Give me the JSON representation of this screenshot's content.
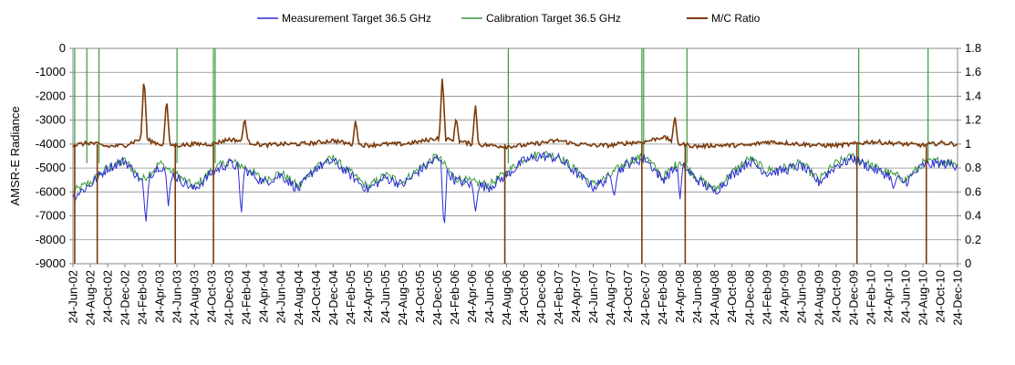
{
  "chart_data": {
    "type": "line",
    "title": "",
    "xlabel": "",
    "ylabel": "AMSR-E Radiance",
    "y2label": "",
    "ylim": [
      -9000,
      0
    ],
    "y2lim": [
      0,
      1.8
    ],
    "yticks": [
      "0",
      "-1000",
      "-2000",
      "-3000",
      "-4000",
      "-5000",
      "-6000",
      "-7000",
      "-8000",
      "-9000"
    ],
    "y2ticks": [
      "1.8",
      "1.6",
      "1.4",
      "1.2",
      "1",
      "0.8",
      "0.6",
      "0.4",
      "0.2",
      "0"
    ],
    "grid": true,
    "legend_position": "top",
    "x_categories": [
      "24-Jun-02",
      "24-Aug-02",
      "24-Oct-02",
      "24-Dec-02",
      "24-Feb-03",
      "24-Apr-03",
      "24-Jun-03",
      "24-Aug-03",
      "24-Oct-03",
      "24-Dec-03",
      "24-Feb-04",
      "24-Apr-04",
      "24-Jun-04",
      "24-Aug-04",
      "24-Oct-04",
      "24-Dec-04",
      "24-Feb-05",
      "24-Apr-05",
      "24-Jun-05",
      "24-Aug-05",
      "24-Oct-05",
      "24-Dec-05",
      "24-Feb-06",
      "24-Apr-06",
      "24-Jun-06",
      "24-Aug-06",
      "24-Oct-06",
      "24-Dec-06",
      "24-Feb-07",
      "24-Apr-07",
      "24-Jun-07",
      "24-Aug-07",
      "24-Oct-07",
      "24-Dec-07",
      "24-Feb-08",
      "24-Apr-08",
      "24-Jun-08",
      "24-Aug-08",
      "24-Oct-08",
      "24-Dec-08",
      "24-Feb-09",
      "24-Apr-09",
      "24-Jun-09",
      "24-Aug-09",
      "24-Oct-09",
      "24-Dec-09",
      "24-Feb-10",
      "24-Apr-10",
      "24-Jun-10",
      "24-Aug-10",
      "24-Oct-10",
      "24-Dec-10"
    ],
    "series": [
      {
        "name": "Measurement Target 36.5 GHz",
        "axis": "left",
        "color": "#2b2bd6",
        "values": [
          -6200,
          -5700,
          -5000,
          -4700,
          -5600,
          -4900,
          -5400,
          -5900,
          -5200,
          -4800,
          -5100,
          -5600,
          -5300,
          -5900,
          -5000,
          -4700,
          -5300,
          -5900,
          -5400,
          -5700,
          -5100,
          -4600,
          -5500,
          -5700,
          -5800,
          -5300,
          -4700,
          -4500,
          -4600,
          -5200,
          -5800,
          -5400,
          -4800,
          -4600,
          -5500,
          -4800,
          -5500,
          -6000,
          -5300,
          -4700,
          -5200,
          -5100,
          -4900,
          -5600,
          -4900,
          -4600,
          -5000,
          -5300,
          -5600,
          -4900,
          -4800,
          -4900
        ],
        "spikes": [
          [
            4.2,
            -7400
          ],
          [
            5.5,
            -6600
          ],
          [
            9.7,
            -7000
          ],
          [
            21.4,
            -7700
          ],
          [
            23.2,
            -6900
          ],
          [
            31.2,
            -6200
          ],
          [
            35.0,
            -6300
          ],
          [
            47.3,
            -5900
          ]
        ]
      },
      {
        "name": "Calibration Target 36.5 GHz",
        "axis": "left",
        "color": "#3a9a3a",
        "values": [
          -6000,
          -5600,
          -5000,
          -4700,
          -5500,
          -4800,
          -5300,
          -5800,
          -5100,
          -4700,
          -5000,
          -5500,
          -5200,
          -5800,
          -4900,
          -4600,
          -5200,
          -5800,
          -5300,
          -5600,
          -5000,
          -4500,
          -5400,
          -5600,
          -5700,
          -5200,
          -4600,
          -4400,
          -4500,
          -5100,
          -5700,
          -5300,
          -4700,
          -4500,
          -5400,
          -4700,
          -5400,
          -5900,
          -5200,
          -4600,
          -5100,
          -5000,
          -4800,
          -5500,
          -4800,
          -4500,
          -4900,
          -5200,
          -5500,
          -4800,
          -4700,
          -4800
        ],
        "spikes_to_top": [
          0.1,
          0.8,
          1.5,
          6.0,
          8.1,
          8.2,
          25.1,
          32.8,
          32.9,
          35.4,
          45.3,
          49.3
        ]
      },
      {
        "name": "M/C Ratio",
        "axis": "right",
        "color": "#7a3a0a",
        "values": [
          0.99,
          1.01,
          0.98,
          0.99,
          1.05,
          1.0,
          0.99,
          1.0,
          1.0,
          1.04,
          1.02,
          0.99,
          1.0,
          1.0,
          1.01,
          1.03,
          1.0,
          0.99,
          1.0,
          1.0,
          1.02,
          1.05,
          1.03,
          1.0,
          0.99,
          0.98,
          0.99,
          1.01,
          1.03,
          1.0,
          0.99,
          0.99,
          1.01,
          1.02,
          1.06,
          1.0,
          0.98,
          0.99,
          0.99,
          0.99,
          1.02,
          1.01,
          1.0,
          0.99,
          0.99,
          1.0,
          1.02,
          1.01,
          1.0,
          0.99,
          1.01,
          1.0
        ],
        "spikes": [
          [
            4.1,
            1.59
          ],
          [
            5.4,
            1.4
          ],
          [
            9.9,
            1.23
          ],
          [
            16.3,
            1.21
          ],
          [
            21.3,
            1.59
          ],
          [
            22.1,
            1.23
          ],
          [
            23.2,
            1.35
          ],
          [
            34.7,
            1.24
          ]
        ],
        "drops_to_zero": [
          0.1,
          1.4,
          5.9,
          8.1,
          24.9,
          32.8,
          35.3,
          45.2,
          49.2
        ]
      }
    ]
  }
}
